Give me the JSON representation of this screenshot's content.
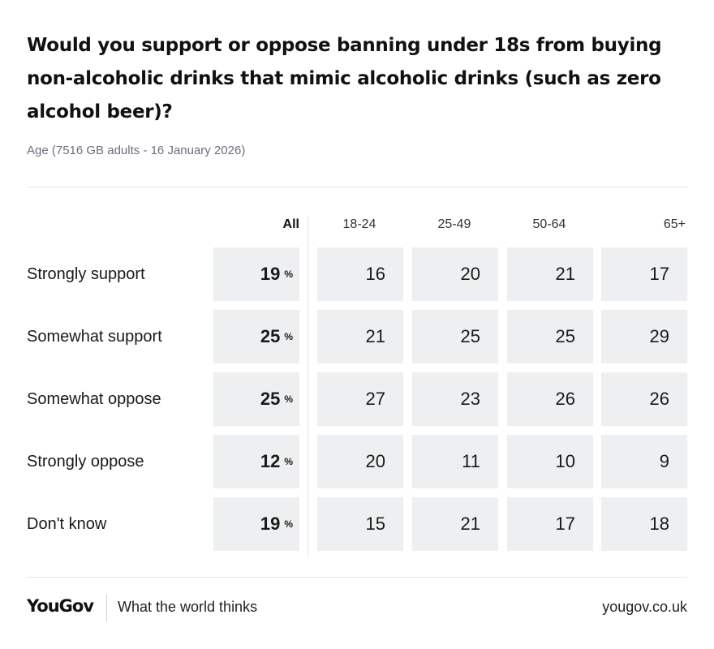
{
  "title": "Would you support or oppose banning under 18s from buying non-alcoholic drinks that mimic alcoholic drinks (such as zero alcohol beer)?",
  "subtitle": "Age (7516 GB adults - 16 January 2026)",
  "footer": {
    "logo": "YouGov",
    "tagline": "What the world thinks",
    "url": "yougov.co.uk"
  },
  "chart_data": {
    "type": "table",
    "columns": [
      "All",
      "18-24",
      "25-49",
      "50-64",
      "65+"
    ],
    "unit": "%",
    "rows": [
      {
        "label": "Strongly support",
        "all": 19,
        "values": [
          16,
          20,
          21,
          17
        ]
      },
      {
        "label": "Somewhat support",
        "all": 25,
        "values": [
          21,
          25,
          25,
          29
        ]
      },
      {
        "label": "Somewhat oppose",
        "all": 25,
        "values": [
          27,
          23,
          26,
          26
        ]
      },
      {
        "label": "Strongly oppose",
        "all": 12,
        "values": [
          20,
          11,
          10,
          9
        ]
      },
      {
        "label": "Don't know",
        "all": 19,
        "values": [
          15,
          21,
          17,
          18
        ]
      }
    ]
  }
}
